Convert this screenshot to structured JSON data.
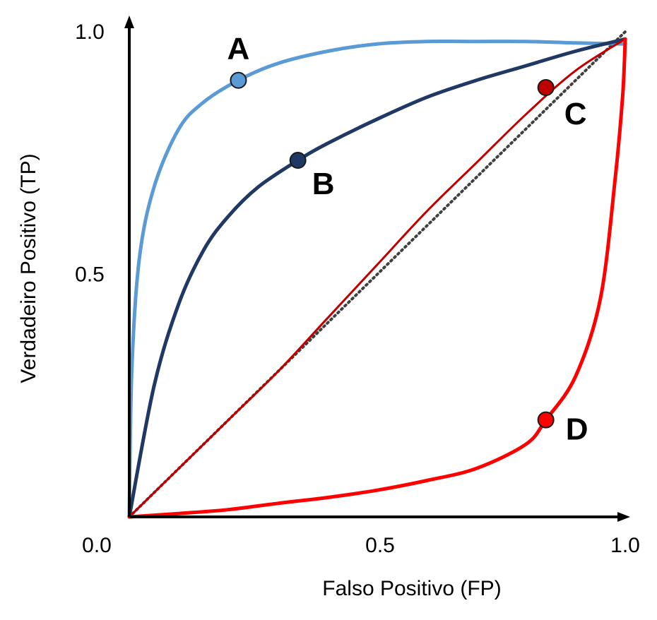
{
  "chart_data": {
    "type": "line",
    "title": "",
    "xlabel": "Falso Positivo (FP)",
    "ylabel": "Verdadeiro Positivo (TP)",
    "xlim": [
      0,
      1
    ],
    "ylim": [
      0,
      1
    ],
    "grid": false,
    "x_ticks": [
      {
        "value": 0,
        "label": "0.0"
      },
      {
        "value": 0.5,
        "label": "0.5"
      },
      {
        "value": 1,
        "label": "1.0"
      }
    ],
    "y_ticks": [
      {
        "value": 0.5,
        "label": "0.5"
      },
      {
        "value": 1,
        "label": "1.0"
      }
    ],
    "diagonal": {
      "x": [
        0,
        1
      ],
      "y": [
        0,
        1
      ],
      "color": "#404040",
      "style": "dotted"
    },
    "series": [
      {
        "label": "A",
        "color": "#5b9bd5",
        "points": [
          [
            0,
            0
          ],
          [
            0.005,
            0.3
          ],
          [
            0.02,
            0.53
          ],
          [
            0.05,
            0.68
          ],
          [
            0.1,
            0.8
          ],
          [
            0.15,
            0.855
          ],
          [
            0.22,
            0.9
          ],
          [
            0.3,
            0.935
          ],
          [
            0.4,
            0.96
          ],
          [
            0.5,
            0.975
          ],
          [
            0.6,
            0.98
          ],
          [
            0.7,
            0.98
          ],
          [
            0.8,
            0.98
          ],
          [
            0.9,
            0.977
          ],
          [
            1,
            0.975
          ]
        ],
        "marker": [
          0.22,
          0.9
        ]
      },
      {
        "label": "B",
        "color": "#1f3864",
        "points": [
          [
            0,
            0
          ],
          [
            0.05,
            0.27
          ],
          [
            0.1,
            0.44
          ],
          [
            0.15,
            0.55
          ],
          [
            0.2,
            0.62
          ],
          [
            0.26,
            0.68
          ],
          [
            0.34,
            0.735
          ],
          [
            0.4,
            0.77
          ],
          [
            0.5,
            0.82
          ],
          [
            0.6,
            0.865
          ],
          [
            0.7,
            0.9
          ],
          [
            0.8,
            0.93
          ],
          [
            0.9,
            0.96
          ],
          [
            1,
            0.985
          ]
        ],
        "marker": [
          0.34,
          0.735
        ]
      },
      {
        "label": "C",
        "color": "#c00000",
        "points": [
          [
            0,
            0
          ],
          [
            0.1,
            0.1
          ],
          [
            0.2,
            0.2
          ],
          [
            0.3,
            0.3
          ],
          [
            0.4,
            0.41
          ],
          [
            0.5,
            0.52
          ],
          [
            0.6,
            0.63
          ],
          [
            0.7,
            0.73
          ],
          [
            0.8,
            0.83
          ],
          [
            0.9,
            0.92
          ],
          [
            1,
            0.985
          ]
        ],
        "marker": [
          0.84,
          0.885
        ]
      },
      {
        "label": "D",
        "color": "#ff0000",
        "points": [
          [
            0,
            0
          ],
          [
            0.1,
            0.007
          ],
          [
            0.2,
            0.015
          ],
          [
            0.3,
            0.028
          ],
          [
            0.4,
            0.04
          ],
          [
            0.5,
            0.055
          ],
          [
            0.6,
            0.075
          ],
          [
            0.7,
            0.1
          ],
          [
            0.8,
            0.15
          ],
          [
            0.84,
            0.2
          ],
          [
            0.9,
            0.29
          ],
          [
            0.95,
            0.45
          ],
          [
            0.98,
            0.7
          ],
          [
            0.995,
            0.87
          ],
          [
            1,
            0.985
          ]
        ],
        "marker": [
          0.84,
          0.2
        ]
      }
    ]
  }
}
